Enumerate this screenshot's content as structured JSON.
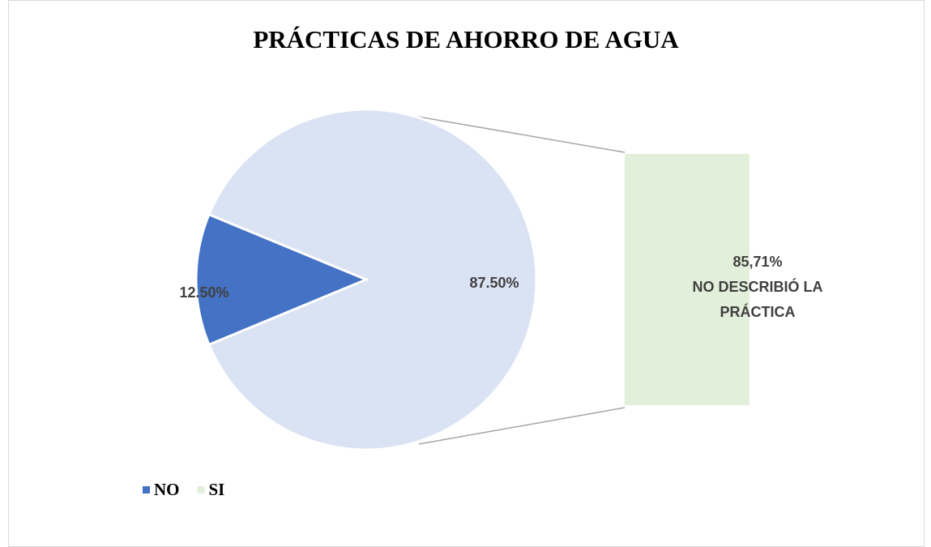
{
  "chart_data": {
    "type": "pie",
    "title": "PRÁCTICAS DE AHORRO DE AGUA",
    "categories": [
      "NO",
      "SI"
    ],
    "values": [
      12.5,
      87.5
    ],
    "value_labels": [
      "12.50%",
      "87.50%"
    ],
    "colors": [
      "#4472c4",
      "#dae3f3"
    ],
    "legend_colors": [
      "#4472c4",
      "#e2efda"
    ],
    "bar": {
      "name": "NO DESCRIBIÓ LA PRÁCTICA",
      "values": [
        85.71
      ],
      "value_labels": [
        "85,71%"
      ],
      "color": "#e2efda"
    }
  }
}
